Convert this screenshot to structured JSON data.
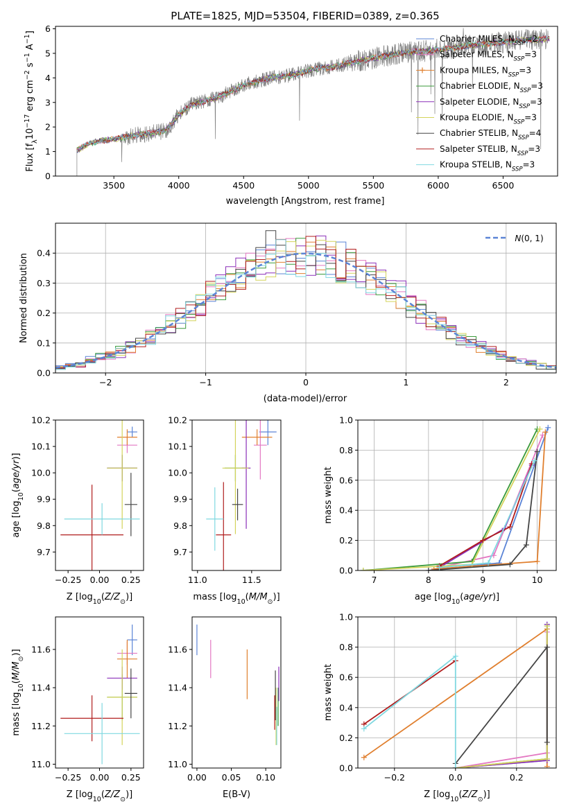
{
  "figure": {
    "title": "PLATE=1825, MJD=53504, FIBERID=0389, z=0.365"
  },
  "series": [
    {
      "name": "Chabrier MILES, N_SSP=2",
      "color": "#5b84d6"
    },
    {
      "name": "Salpeter MILES, N_SSP=3",
      "color": "#e377c2"
    },
    {
      "name": "Kroupa MILES, N_SSP=3",
      "color": "#e07f2e"
    },
    {
      "name": "Chabrier ELODIE, N_SSP=3",
      "color": "#3a9a3a"
    },
    {
      "name": "Salpeter ELODIE, N_SSP=3",
      "color": "#8a2eb8"
    },
    {
      "name": "Kroupa ELODIE, N_SSP=3",
      "color": "#d3d35a"
    },
    {
      "name": "Chabrier STELIB, N_SSP=4",
      "color": "#444444"
    },
    {
      "name": "Salpeter STELIB, N_SSP=3",
      "color": "#b01c1c"
    },
    {
      "name": "Kroupa STELIB, N_SSP=3",
      "color": "#7fd8e0"
    }
  ],
  "chart_data": [
    {
      "type": "line",
      "id": "spectrum",
      "title": "PLATE=1825, MJD=53504, FIBERID=0389, z=0.365",
      "xlabel": "wavelength [Angstrom, rest frame]",
      "ylabel": "Flux [f_λ 10^-17 erg cm^-2 s^-1 A^-1]",
      "xlim": [
        3050,
        6920
      ],
      "ylim": [
        0,
        6.1
      ],
      "xticks": [
        3500,
        4000,
        4500,
        5000,
        5500,
        6000,
        6500
      ],
      "yticks": [
        0,
        1,
        2,
        3,
        4,
        5,
        6
      ],
      "legend_loc": "top-right",
      "data_color": "#808080",
      "continuum": [
        [
          3215,
          1.05
        ],
        [
          3300,
          1.3
        ],
        [
          3400,
          1.45
        ],
        [
          3500,
          1.5
        ],
        [
          3600,
          1.6
        ],
        [
          3700,
          1.7
        ],
        [
          3800,
          1.75
        ],
        [
          3900,
          1.85
        ],
        [
          4000,
          2.5
        ],
        [
          4100,
          2.9
        ],
        [
          4200,
          3.05
        ],
        [
          4300,
          3.2
        ],
        [
          4400,
          3.45
        ],
        [
          4500,
          3.7
        ],
        [
          4600,
          3.85
        ],
        [
          4700,
          4.0
        ],
        [
          4800,
          4.05
        ],
        [
          4900,
          4.15
        ],
        [
          5000,
          4.3
        ],
        [
          5100,
          4.4
        ],
        [
          5200,
          4.45
        ],
        [
          5300,
          4.6
        ],
        [
          5400,
          4.7
        ],
        [
          5500,
          4.8
        ],
        [
          5600,
          4.9
        ],
        [
          5700,
          5.0
        ],
        [
          5800,
          5.05
        ],
        [
          5900,
          5.1
        ],
        [
          6000,
          5.15
        ],
        [
          6100,
          5.2
        ],
        [
          6200,
          5.3
        ],
        [
          6300,
          5.35
        ],
        [
          6400,
          5.4
        ],
        [
          6500,
          5.45
        ],
        [
          6600,
          5.5
        ],
        [
          6700,
          5.55
        ],
        [
          6800,
          5.55
        ],
        [
          6860,
          5.6
        ]
      ]
    },
    {
      "type": "bar",
      "id": "residuals",
      "xlabel": "(data-model)/error",
      "ylabel": "Normed distribution",
      "xlim": [
        -2.5,
        2.5
      ],
      "ylim": [
        0,
        0.5
      ],
      "xticks": [
        -2,
        -1,
        0,
        1,
        2
      ],
      "yticks": [
        0.0,
        0.1,
        0.2,
        0.3,
        0.4
      ],
      "grid": true,
      "legend": "N(0, 1)",
      "legend_loc": "top-right",
      "bin_width": 0.1,
      "normal": {
        "mean": 0,
        "sigma": 1,
        "color": "#5b84d6"
      }
    },
    {
      "type": "scatter",
      "id": "age_vs_Z",
      "xlabel": "Z [log10(Z/Z_sun)]",
      "ylabel": "age [log10(age/yr)]",
      "xlim": [
        -0.35,
        0.35
      ],
      "ylim": [
        9.63,
        10.2
      ],
      "xticks": [
        -0.25,
        0.0,
        0.25
      ],
      "yticks": [
        9.7,
        9.8,
        9.9,
        10.0,
        10.1,
        10.2
      ],
      "points": [
        {
          "x": 0.26,
          "xerr": 0.04,
          "y": 10.155,
          "yerr": 0.02
        },
        {
          "x": 0.22,
          "xerr": 0.08,
          "y": 10.105,
          "yerr": 0.03
        },
        {
          "x": 0.22,
          "xerr": 0.08,
          "y": 10.135,
          "yerr": 0.03
        },
        {
          "x": 0.18,
          "xerr": 0.12,
          "y": 10.018,
          "yerr": 0.05
        },
        {
          "x": 0.18,
          "xerr": 0.12,
          "y": 10.018,
          "yerr": 0.05
        },
        {
          "x": 0.18,
          "xerr": 0.12,
          "y": 10.018,
          "yerr": 0.23
        },
        {
          "x": 0.25,
          "xerr": 0.05,
          "y": 9.88,
          "yerr": 0.12
        },
        {
          "x": -0.06,
          "xerr": 0.25,
          "y": 9.765,
          "yerr": 0.19
        },
        {
          "x": 0.02,
          "xerr": 0.3,
          "y": 9.825,
          "yerr": 0.06
        }
      ]
    },
    {
      "type": "scatter",
      "id": "age_vs_mass",
      "xlabel": "mass [log10(M/M_sun)]",
      "ylabel": "",
      "xlim": [
        10.95,
        11.77
      ],
      "ylim": [
        9.63,
        10.2
      ],
      "xticks": [
        11.0,
        11.5
      ],
      "yticks": [
        9.7,
        9.8,
        9.9,
        10.0,
        10.1,
        10.2
      ],
      "points": [
        {
          "x": 11.65,
          "xerr": 0.08,
          "y": 10.155,
          "yerr": 0.05
        },
        {
          "x": 11.58,
          "xerr": 0.06,
          "y": 10.105,
          "yerr": 0.13
        },
        {
          "x": 11.55,
          "xerr": 0.14,
          "y": 10.135,
          "yerr": 0.03
        },
        {
          "x": 11.35,
          "xerr": 0.1,
          "y": 10.018,
          "yerr": 0.05
        },
        {
          "x": 11.45,
          "xerr": 0.04,
          "y": 10.018,
          "yerr": 0.23
        },
        {
          "x": 11.35,
          "xerr": 0.12,
          "y": 10.018,
          "yerr": 0.25
        },
        {
          "x": 11.37,
          "xerr": 0.05,
          "y": 9.88,
          "yerr": 0.06
        },
        {
          "x": 11.24,
          "xerr": 0.07,
          "y": 9.765,
          "yerr": 0.2
        },
        {
          "x": 11.16,
          "xerr": 0.08,
          "y": 9.825,
          "yerr": 0.12
        }
      ]
    },
    {
      "type": "line",
      "id": "mass_weight_vs_age",
      "xlabel": "age [log10(age/yr)]",
      "ylabel": "mass weight",
      "xlim": [
        6.7,
        10.35
      ],
      "ylim": [
        0,
        1.0
      ],
      "xticks": [
        7,
        8,
        9,
        10
      ],
      "yticks": [
        0.0,
        0.2,
        0.4,
        0.6,
        0.8,
        1.0
      ],
      "grid": true,
      "lines": [
        [
          [
            8.0,
            0.0
          ],
          [
            9.3,
            0.05
          ],
          [
            10.2,
            0.95
          ]
        ],
        [
          [
            8.2,
            0.02
          ],
          [
            9.2,
            0.1
          ],
          [
            10.1,
            0.9
          ]
        ],
        [
          [
            8.1,
            0.01
          ],
          [
            10.0,
            0.06
          ],
          [
            10.15,
            0.92
          ]
        ],
        [
          [
            6.8,
            0.0
          ],
          [
            8.8,
            0.06
          ],
          [
            10.0,
            0.94
          ]
        ],
        [
          [
            8.2,
            0.02
          ],
          [
            9.4,
            0.28
          ],
          [
            9.9,
            0.7
          ]
        ],
        [
          [
            6.8,
            0.0
          ],
          [
            8.8,
            0.04
          ],
          [
            10.05,
            0.94
          ]
        ],
        [
          [
            8.0,
            0.0
          ],
          [
            9.5,
            0.04
          ],
          [
            9.8,
            0.17
          ],
          [
            10.0,
            0.79
          ]
        ],
        [
          [
            8.2,
            0.03
          ],
          [
            9.0,
            0.2
          ],
          [
            9.5,
            0.29
          ],
          [
            9.9,
            0.71
          ]
        ],
        [
          [
            8.2,
            0.02
          ],
          [
            9.1,
            0.05
          ],
          [
            9.95,
            0.73
          ]
        ]
      ]
    },
    {
      "type": "scatter",
      "id": "mass_vs_Z",
      "xlabel": "Z [log10(Z/Z_sun)]",
      "ylabel": "mass [log10(M/M_sun)]",
      "xlim": [
        -0.35,
        0.35
      ],
      "ylim": [
        10.98,
        11.77
      ],
      "xticks": [
        -0.25,
        0.0,
        0.25
      ],
      "yticks": [
        11.0,
        11.2,
        11.4,
        11.6
      ],
      "points": [
        {
          "x": 0.26,
          "xerr": 0.04,
          "y": 11.65,
          "yerr": 0.08
        },
        {
          "x": 0.22,
          "xerr": 0.08,
          "y": 11.58,
          "yerr": 0.06
        },
        {
          "x": 0.22,
          "xerr": 0.08,
          "y": 11.55,
          "yerr": 0.1
        },
        {
          "x": 0.18,
          "xerr": 0.12,
          "y": 11.35,
          "yerr": 0.12
        },
        {
          "x": 0.18,
          "xerr": 0.12,
          "y": 11.45,
          "yerr": 0.06
        },
        {
          "x": 0.18,
          "xerr": 0.12,
          "y": 11.35,
          "yerr": 0.25
        },
        {
          "x": 0.25,
          "xerr": 0.05,
          "y": 11.37,
          "yerr": 0.13
        },
        {
          "x": -0.06,
          "xerr": 0.25,
          "y": 11.24,
          "yerr": 0.12
        },
        {
          "x": 0.02,
          "xerr": 0.3,
          "y": 11.16,
          "yerr": 0.16
        }
      ]
    },
    {
      "type": "scatter",
      "id": "mass_vs_EBV",
      "xlabel": "E(B-V)",
      "ylabel": "",
      "xlim": [
        -0.007,
        0.122
      ],
      "ylim": [
        10.98,
        11.77
      ],
      "xticks": [
        0.0,
        0.05,
        0.1
      ],
      "yticks": [
        11.0,
        11.2,
        11.4,
        11.6
      ],
      "points": [
        {
          "x": 0.0,
          "y": 11.65,
          "yerr": 0.08
        },
        {
          "x": 0.02,
          "y": 11.55,
          "yerr": 0.1
        },
        {
          "x": 0.073,
          "y": 11.47,
          "yerr": 0.13
        },
        {
          "x": 0.118,
          "y": 11.3,
          "yerr": 0.1
        },
        {
          "x": 0.119,
          "y": 11.42,
          "yerr": 0.09
        },
        {
          "x": 0.115,
          "y": 11.25,
          "yerr": 0.15
        },
        {
          "x": 0.114,
          "y": 11.36,
          "yerr": 0.13
        },
        {
          "x": 0.113,
          "y": 11.27,
          "yerr": 0.09
        },
        {
          "x": 0.116,
          "y": 11.2,
          "yerr": 0.1
        }
      ]
    },
    {
      "type": "line",
      "id": "mass_weight_vs_Z",
      "xlabel": "Z [log10(Z/Z_sun)]",
      "ylabel": "mass weight",
      "xlim": [
        -0.32,
        0.33
      ],
      "ylim": [
        0,
        1.0
      ],
      "xticks": [
        -0.2,
        0.0,
        0.2
      ],
      "yticks": [
        0.0,
        0.2,
        0.4,
        0.6,
        0.8,
        1.0
      ],
      "grid": true,
      "lines": [
        [
          [
            0.0,
            0.0
          ],
          [
            0.3,
            0.05
          ],
          [
            0.3,
            0.95
          ]
        ],
        [
          [
            0.0,
            0.0
          ],
          [
            0.3,
            0.1
          ],
          [
            0.3,
            0.9
          ]
        ],
        [
          [
            -0.3,
            0.07
          ],
          [
            0.3,
            0.92
          ],
          [
            0.3,
            0.01
          ]
        ],
        [
          [
            0.0,
            0.0
          ],
          [
            0.3,
            0.06
          ],
          [
            0.3,
            0.94
          ]
        ],
        [
          [
            0.0,
            0.0
          ],
          [
            0.3,
            0.05
          ],
          [
            0.3,
            0.95
          ]
        ],
        [
          [
            0.0,
            0.0
          ],
          [
            0.3,
            0.06
          ],
          [
            0.3,
            0.94
          ]
        ],
        [
          [
            0.0,
            0.03
          ],
          [
            0.3,
            0.8
          ],
          [
            0.3,
            0.17
          ]
        ],
        [
          [
            -0.3,
            0.29
          ],
          [
            0.0,
            0.71
          ]
        ],
        [
          [
            -0.3,
            0.26
          ],
          [
            0.0,
            0.74
          ],
          [
            0.0,
            0.0
          ]
        ]
      ]
    }
  ]
}
